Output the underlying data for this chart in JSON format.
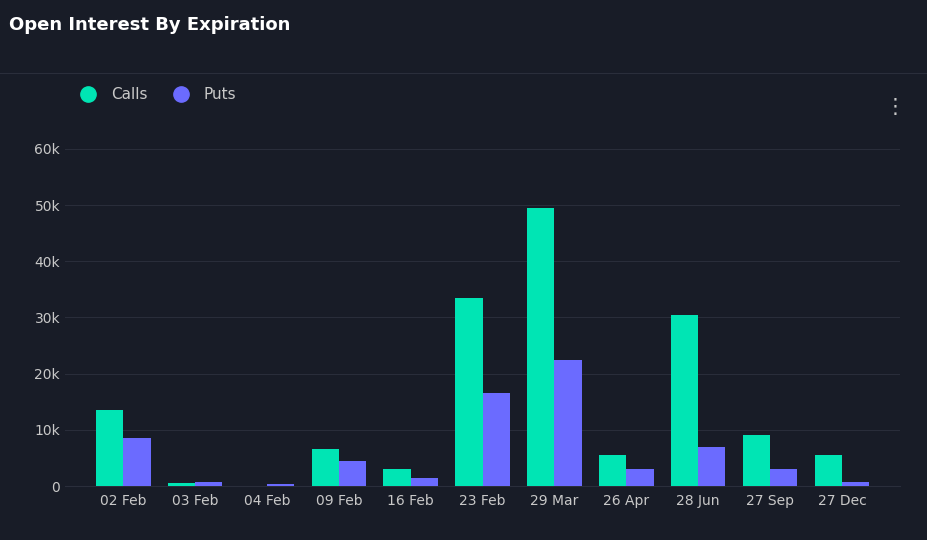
{
  "title": "Open Interest By Expiration",
  "categories": [
    "02 Feb",
    "03 Feb",
    "04 Feb",
    "09 Feb",
    "16 Feb",
    "23 Feb",
    "29 Mar",
    "26 Apr",
    "28 Jun",
    "27 Sep",
    "27 Dec"
  ],
  "calls": [
    13500,
    500,
    0,
    6500,
    3000,
    33500,
    49500,
    5500,
    30500,
    9000,
    5500
  ],
  "puts": [
    8500,
    700,
    300,
    4500,
    1500,
    16500,
    22500,
    3000,
    7000,
    3000,
    800
  ],
  "calls_color": "#00e5b4",
  "puts_color": "#6b6bff",
  "background_color": "#181c27",
  "plot_bg_color": "#181c27",
  "grid_color": "#2a2e3b",
  "text_color": "#c8c8c8",
  "title_color": "#ffffff",
  "ylim": [
    0,
    62000
  ],
  "yticks": [
    0,
    10000,
    20000,
    30000,
    40000,
    50000,
    60000
  ],
  "ytick_labels": [
    "0",
    "10k",
    "20k",
    "30k",
    "40k",
    "50k",
    "60k"
  ],
  "bar_width": 0.38,
  "legend_calls": "Calls",
  "legend_puts": "Puts",
  "title_fontsize": 13,
  "tick_fontsize": 10
}
